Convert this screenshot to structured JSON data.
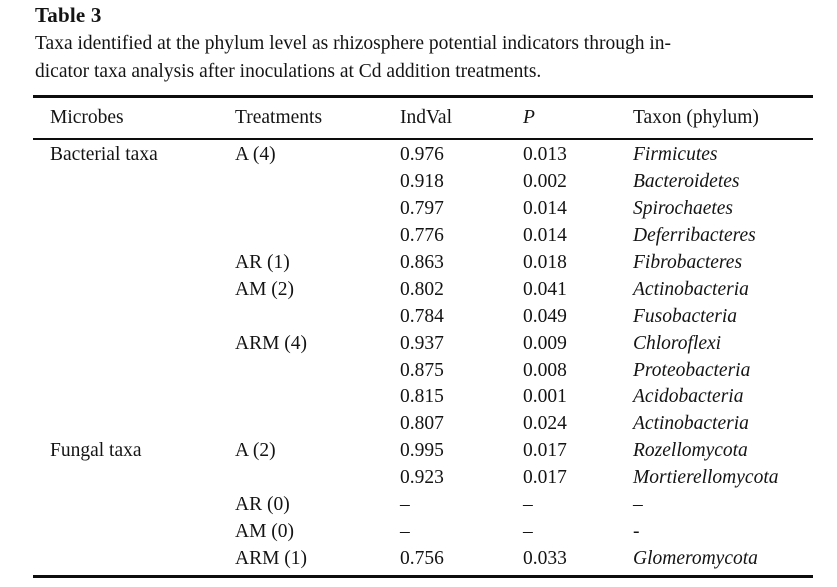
{
  "page": {
    "title": "Table 3",
    "caption_line1": "Taxa identified at the phylum level as rhizosphere potential indicators through in-",
    "caption_line2": "dicator taxa analysis after inoculations at Cd addition treatments."
  },
  "table": {
    "columns": [
      "Microbes",
      "Treatments",
      "IndVal",
      "P",
      "Taxon (phylum)"
    ],
    "rows": [
      {
        "microbes": "Bacterial taxa",
        "treatment": "A (4)",
        "indval": "0.976",
        "p": "0.013",
        "taxon": "Firmicutes"
      },
      {
        "microbes": "",
        "treatment": "",
        "indval": "0.918",
        "p": "0.002",
        "taxon": "Bacteroidetes"
      },
      {
        "microbes": "",
        "treatment": "",
        "indval": "0.797",
        "p": "0.014",
        "taxon": "Spirochaetes"
      },
      {
        "microbes": "",
        "treatment": "",
        "indval": "0.776",
        "p": "0.014",
        "taxon": "Deferribacteres"
      },
      {
        "microbes": "",
        "treatment": "AR (1)",
        "indval": "0.863",
        "p": "0.018",
        "taxon": "Fibrobacteres"
      },
      {
        "microbes": "",
        "treatment": "AM (2)",
        "indval": "0.802",
        "p": "0.041",
        "taxon": "Actinobacteria"
      },
      {
        "microbes": "",
        "treatment": "",
        "indval": "0.784",
        "p": "0.049",
        "taxon": "Fusobacteria"
      },
      {
        "microbes": "",
        "treatment": "ARM (4)",
        "indval": "0.937",
        "p": "0.009",
        "taxon": "Chloroflexi"
      },
      {
        "microbes": "",
        "treatment": "",
        "indval": "0.875",
        "p": "0.008",
        "taxon": "Proteobacteria"
      },
      {
        "microbes": "",
        "treatment": "",
        "indval": "0.815",
        "p": "0.001",
        "taxon": "Acidobacteria"
      },
      {
        "microbes": "",
        "treatment": "",
        "indval": "0.807",
        "p": "0.024",
        "taxon": "Actinobacteria"
      },
      {
        "microbes": "Fungal taxa",
        "treatment": "A (2)",
        "indval": "0.995",
        "p": "0.017",
        "taxon": "Rozellomycota"
      },
      {
        "microbes": "",
        "treatment": "",
        "indval": "0.923",
        "p": "0.017",
        "taxon": "Mortierellomycota"
      },
      {
        "microbes": "",
        "treatment": "AR (0)",
        "indval": "–",
        "p": "–",
        "taxon": "–"
      },
      {
        "microbes": "",
        "treatment": "AM (0)",
        "indval": "–",
        "p": "–",
        "taxon": "-"
      },
      {
        "microbes": "",
        "treatment": "ARM (1)",
        "indval": "0.756",
        "p": "0.033",
        "taxon": "Glomeromycota"
      }
    ]
  }
}
